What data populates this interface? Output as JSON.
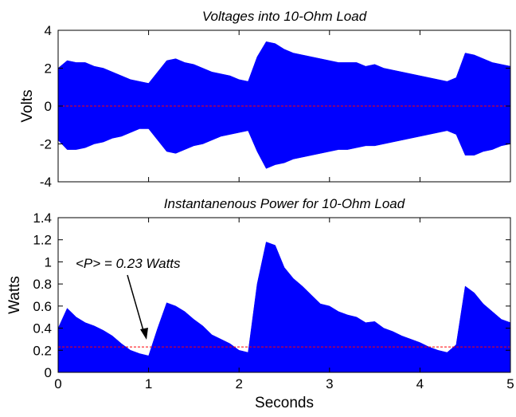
{
  "chart_data": [
    {
      "type": "area",
      "title": "Voltages into 10-Ohm Load",
      "ylabel": "Volts",
      "x": [
        0,
        0.1,
        0.2,
        0.3,
        0.4,
        0.5,
        0.6,
        0.7,
        0.8,
        0.9,
        1,
        1.1,
        1.2,
        1.3,
        1.4,
        1.5,
        1.6,
        1.7,
        1.8,
        1.9,
        2,
        2.1,
        2.2,
        2.3,
        2.4,
        2.5,
        2.6,
        2.7,
        2.8,
        2.9,
        3,
        3.1,
        3.2,
        3.3,
        3.4,
        3.5,
        3.6,
        3.7,
        3.8,
        3.9,
        4,
        4.1,
        4.2,
        4.3,
        4.4,
        4.5,
        4.6,
        4.7,
        4.8,
        4.9,
        5
      ],
      "upper": [
        2.0,
        2.4,
        2.3,
        2.3,
        2.1,
        2.0,
        1.8,
        1.6,
        1.4,
        1.3,
        1.2,
        1.8,
        2.4,
        2.5,
        2.3,
        2.2,
        2.0,
        1.8,
        1.7,
        1.6,
        1.4,
        1.3,
        2.6,
        3.4,
        3.3,
        3.0,
        2.8,
        2.7,
        2.6,
        2.5,
        2.4,
        2.3,
        2.3,
        2.3,
        2.1,
        2.2,
        2.0,
        1.9,
        1.8,
        1.7,
        1.6,
        1.5,
        1.4,
        1.3,
        1.5,
        2.8,
        2.7,
        2.5,
        2.3,
        2.2,
        2.1
      ],
      "lower": [
        -1.8,
        -2.3,
        -2.3,
        -2.2,
        -2.0,
        -1.9,
        -1.7,
        -1.6,
        -1.4,
        -1.2,
        -1.2,
        -1.8,
        -2.4,
        -2.5,
        -2.3,
        -2.1,
        -2.0,
        -1.8,
        -1.6,
        -1.5,
        -1.4,
        -1.3,
        -2.4,
        -3.3,
        -3.1,
        -3.0,
        -2.8,
        -2.7,
        -2.6,
        -2.5,
        -2.4,
        -2.3,
        -2.3,
        -2.2,
        -2.1,
        -2.1,
        -2.0,
        -1.9,
        -1.8,
        -1.7,
        -1.6,
        -1.5,
        -1.4,
        -1.3,
        -1.5,
        -2.6,
        -2.6,
        -2.4,
        -2.3,
        -2.1,
        -2.0
      ],
      "color": "#0000ff",
      "mean": 0,
      "mean_color": "#ff0000",
      "xlim": [
        0,
        5
      ],
      "xticks": [
        0,
        1,
        2,
        3,
        4,
        5
      ],
      "ylim": [
        -4,
        4
      ],
      "yticks": [
        -4,
        -2,
        0,
        2,
        4
      ]
    },
    {
      "type": "area",
      "title": "Instantanenous Power for 10-Ohm Load",
      "ylabel": "Watts",
      "xlabel": "Seconds",
      "annotation": "<P> = 0.23 Watts",
      "x": [
        0,
        0.1,
        0.2,
        0.3,
        0.4,
        0.5,
        0.6,
        0.7,
        0.8,
        0.9,
        1,
        1.1,
        1.2,
        1.3,
        1.4,
        1.5,
        1.6,
        1.7,
        1.8,
        1.9,
        2,
        2.1,
        2.2,
        2.3,
        2.4,
        2.5,
        2.6,
        2.7,
        2.8,
        2.9,
        3,
        3.1,
        3.2,
        3.3,
        3.4,
        3.5,
        3.6,
        3.7,
        3.8,
        3.9,
        4,
        4.1,
        4.2,
        4.3,
        4.4,
        4.5,
        4.6,
        4.7,
        4.8,
        4.9,
        5
      ],
      "upper": [
        0.4,
        0.58,
        0.5,
        0.45,
        0.42,
        0.38,
        0.33,
        0.26,
        0.2,
        0.17,
        0.15,
        0.4,
        0.63,
        0.6,
        0.55,
        0.48,
        0.42,
        0.34,
        0.3,
        0.26,
        0.2,
        0.18,
        0.8,
        1.18,
        1.15,
        0.95,
        0.85,
        0.78,
        0.7,
        0.62,
        0.6,
        0.55,
        0.52,
        0.5,
        0.45,
        0.46,
        0.4,
        0.37,
        0.33,
        0.3,
        0.27,
        0.23,
        0.2,
        0.18,
        0.25,
        0.78,
        0.72,
        0.62,
        0.55,
        0.48,
        0.45
      ],
      "color": "#0000ff",
      "mean": 0.23,
      "mean_color": "#ff0000",
      "xlim": [
        0,
        5
      ],
      "xticks": [
        0,
        1,
        2,
        3,
        4,
        5
      ],
      "ylim": [
        0,
        1.4
      ],
      "yticks": [
        0,
        0.2,
        0.4,
        0.6,
        0.8,
        1,
        1.2,
        1.4
      ]
    }
  ]
}
